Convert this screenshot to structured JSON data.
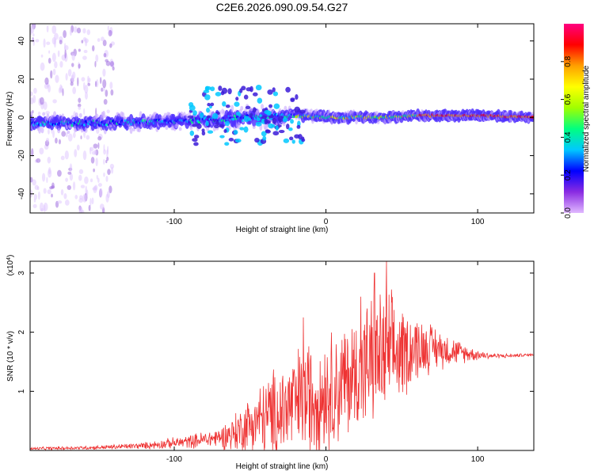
{
  "chart_data": [
    {
      "type": "heatmap",
      "title": "C2E6.2026.090.09.54.G27",
      "xlabel": "Height of straight line (km)",
      "ylabel": "Frequency (Hz)",
      "xlim": [
        -195,
        137
      ],
      "ylim": [
        -50,
        49
      ],
      "xticks": [
        -100,
        0,
        100
      ],
      "yticks": [
        -40,
        -20,
        0,
        20,
        40
      ],
      "colorbar": {
        "label": "Normalized spectral amplitude",
        "range": [
          0,
          1
        ],
        "ticks": [
          "0.0",
          "0.2",
          "0.4",
          "0.6",
          "0.8"
        ],
        "colors": [
          "#e0b8ff",
          "#8a2be2",
          "#0000ff",
          "#00c8ff",
          "#00ff80",
          "#a0ff00",
          "#ffff00",
          "#ffa000",
          "#ff0000",
          "#ff0080"
        ]
      },
      "ridge": {
        "x": [
          -195,
          -150,
          -100,
          -70,
          -50,
          -35,
          -20,
          0,
          20,
          40,
          60,
          80,
          100,
          137
        ],
        "freq_center": [
          -3,
          -3,
          -2,
          -1,
          0,
          0,
          1,
          0,
          0,
          0,
          1,
          1,
          1,
          0
        ],
        "freq_halfwidth": [
          6,
          6,
          5,
          7,
          8,
          7,
          4,
          3,
          3,
          3,
          2,
          2,
          2,
          2
        ]
      }
    },
    {
      "type": "line",
      "xlabel": "Height of straight line (km)",
      "ylabel": "SNR (10 * v/v)",
      "exponent_label": "(x10",
      "exponent_power": "4",
      "exponent_close": ")",
      "xlim": [
        -195,
        137
      ],
      "ylim": [
        0,
        3.2
      ],
      "xticks": [
        -100,
        0,
        100
      ],
      "yticks": [
        1,
        2,
        3
      ],
      "color": "#ee3333",
      "envelope": {
        "x": [
          -195,
          -150,
          -120,
          -90,
          -70,
          -60,
          -50,
          -40,
          -30,
          -20,
          -10,
          0,
          10,
          20,
          30,
          40,
          50,
          60,
          70,
          80,
          90,
          100,
          110,
          120,
          137
        ],
        "mean": [
          0.03,
          0.05,
          0.08,
          0.15,
          0.22,
          0.3,
          0.45,
          0.55,
          0.65,
          0.8,
          0.9,
          1.0,
          1.1,
          1.3,
          1.5,
          1.6,
          1.65,
          1.75,
          1.75,
          1.7,
          1.65,
          1.62,
          1.6,
          1.6,
          1.62
        ],
        "amp": [
          0.02,
          0.03,
          0.05,
          0.1,
          0.15,
          0.3,
          0.45,
          0.6,
          0.75,
          0.8,
          0.9,
          0.9,
          0.9,
          0.9,
          1.0,
          1.0,
          0.7,
          0.5,
          0.35,
          0.25,
          0.15,
          0.08,
          0.04,
          0.03,
          0.02
        ]
      },
      "peaks": [
        {
          "x": 40,
          "y": 3.2
        },
        {
          "x": 32,
          "y": 3.0
        },
        {
          "x": 23,
          "y": 2.6
        },
        {
          "x": -15,
          "y": 2.25
        }
      ]
    }
  ]
}
